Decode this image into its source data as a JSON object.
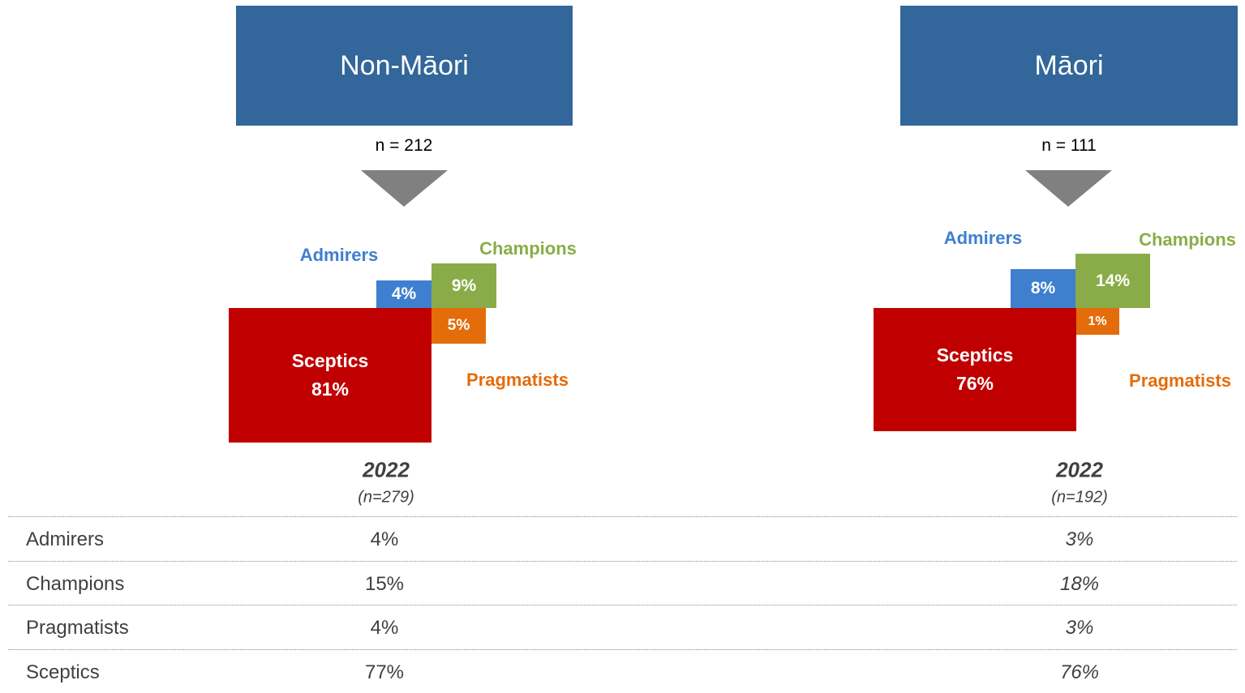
{
  "groups": [
    {
      "title": "Non-Māori",
      "sample": "n = 212",
      "segments": {
        "admirers": {
          "label": "Admirers",
          "value": "4%"
        },
        "champions": {
          "label": "Champions",
          "value": "9%"
        },
        "pragmatists": {
          "label": "Pragmatists",
          "value": "5%"
        },
        "sceptics": {
          "label": "Sceptics",
          "value": "81%"
        }
      },
      "year": "2022",
      "year_sample": "(n=279)"
    },
    {
      "title": "Māori",
      "sample": "n = 111",
      "segments": {
        "admirers": {
          "label": "Admirers",
          "value": "8%"
        },
        "champions": {
          "label": "Champions",
          "value": "14%"
        },
        "pragmatists": {
          "label": "Pragmatists",
          "value": "1%"
        },
        "sceptics": {
          "label": "Sceptics",
          "value": "76%"
        }
      },
      "year": "2022",
      "year_sample": "(n=192)"
    }
  ],
  "table": {
    "rows": [
      [
        "Admirers",
        "4%",
        "3%"
      ],
      [
        "Champions",
        "15%",
        "18%"
      ],
      [
        "Pragmatists",
        "4%",
        "3%"
      ],
      [
        "Sceptics",
        "77%",
        "76%"
      ]
    ]
  }
}
